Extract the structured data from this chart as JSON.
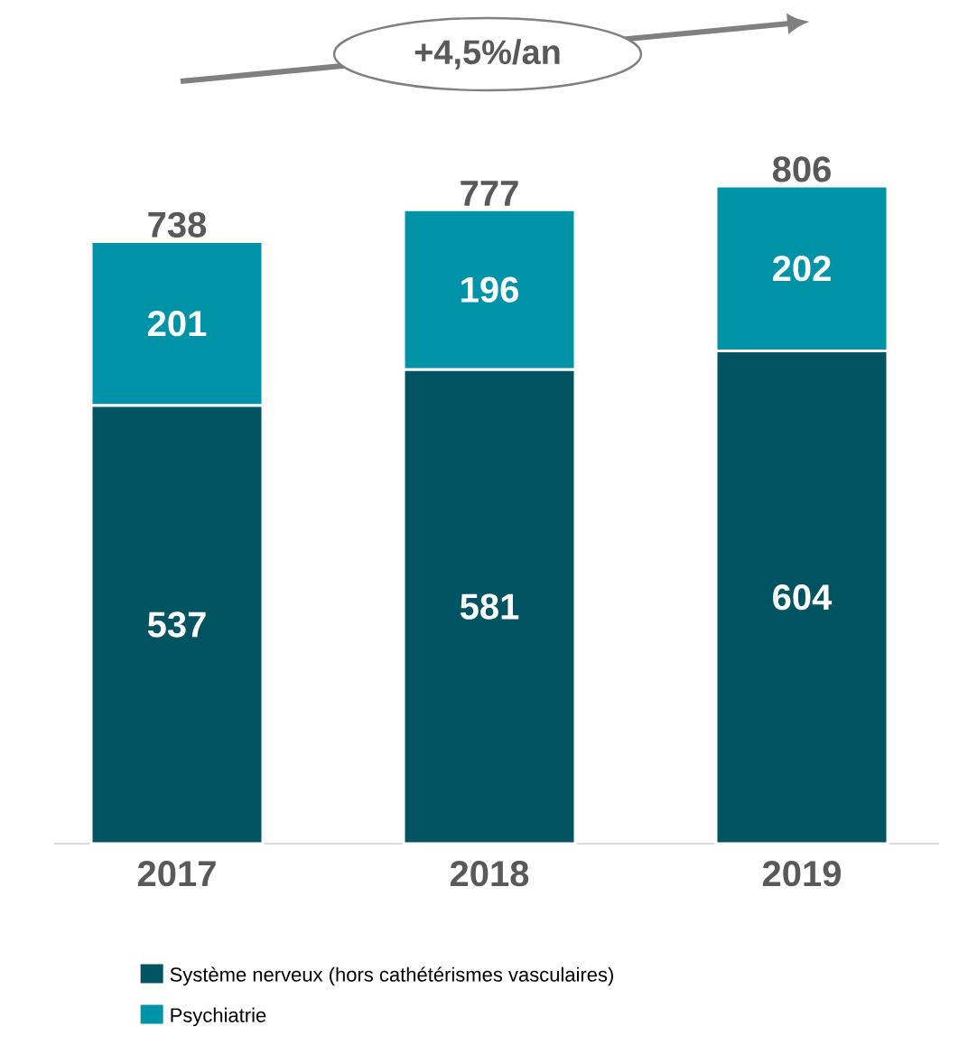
{
  "chart_data": {
    "type": "bar",
    "stacked": true,
    "categories": [
      "2017",
      "2018",
      "2019"
    ],
    "series": [
      {
        "name": "Système nerveux (hors cathétérismes vasculaires)",
        "color": "#005360",
        "values": [
          537,
          581,
          604
        ]
      },
      {
        "name": "Psychiatrie",
        "color": "#0093a8",
        "values": [
          201,
          196,
          202
        ]
      }
    ],
    "data_labels": true,
    "totals": [
      "738",
      "777",
      "806"
    ],
    "annotations": [
      "+4,5%/an"
    ],
    "legend": "bottom"
  }
}
